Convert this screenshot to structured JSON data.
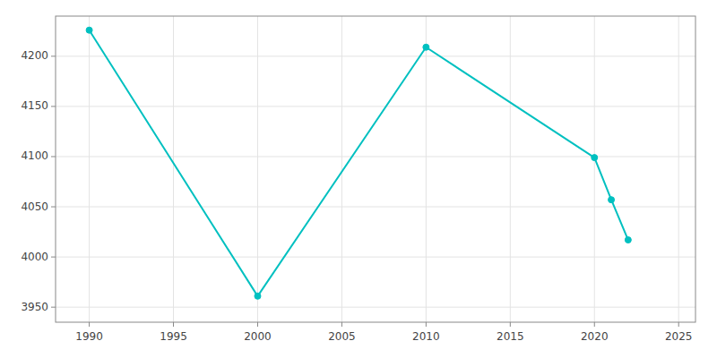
{
  "chart_data": {
    "type": "line",
    "x": [
      1990,
      2000,
      2010,
      2020,
      2021,
      2022
    ],
    "values": [
      4226,
      3961,
      4209,
      4099,
      4057,
      4017
    ],
    "color": "#00C0C0",
    "marker": "circle",
    "xlim": [
      1988,
      2026
    ],
    "ylim": [
      3935,
      4240
    ],
    "xticks": [
      1990,
      1995,
      2000,
      2005,
      2010,
      2015,
      2020,
      2025
    ],
    "yticks": [
      3950,
      4000,
      4050,
      4100,
      4150,
      4200
    ],
    "grid": true
  }
}
